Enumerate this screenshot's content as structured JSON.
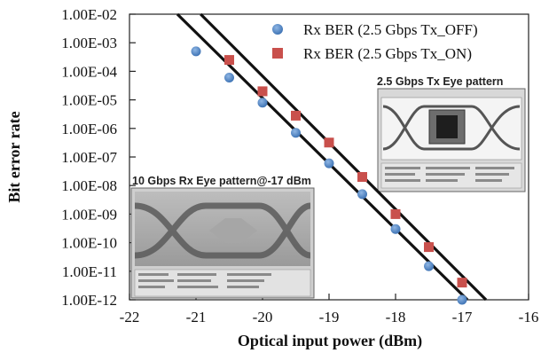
{
  "chart_data": {
    "type": "scatter",
    "xlabel": "Optical input power (dBm)",
    "ylabel": "Bit error rate",
    "xlim": [
      -22,
      -16
    ],
    "ylim": [
      1e-12,
      0.01
    ],
    "y_scale": "log",
    "x_ticks": [
      "-22",
      "-21",
      "-20",
      "-19",
      "-18",
      "-17",
      "-16"
    ],
    "y_ticks": [
      "1.00E-02",
      "1.00E-03",
      "1.00E-04",
      "1.00E-05",
      "1.00E-06",
      "1.00E-07",
      "1.00E-08",
      "1.00E-09",
      "1.00E-10",
      "1.00E-11",
      "1.00E-12"
    ],
    "legend_position": "top-right",
    "series": [
      {
        "name": "Rx BER (2.5 Gbps Tx_OFF)",
        "marker": "circle",
        "color": "#4f86c6",
        "x": [
          -21.0,
          -20.5,
          -20.0,
          -19.5,
          -19.0,
          -18.5,
          -18.0,
          -17.5,
          -17.0
        ],
        "y": [
          0.0005,
          6e-05,
          8e-06,
          7e-07,
          6e-08,
          5e-09,
          3e-10,
          1.5e-11,
          1e-12
        ]
      },
      {
        "name": "Rx BER (2.5 Gbps Tx_ON)",
        "marker": "square",
        "color": "#c9504c",
        "x": [
          -20.5,
          -20.0,
          -19.5,
          -19.0,
          -18.5,
          -18.0,
          -17.5,
          -17.0
        ],
        "y": [
          0.00025,
          2e-05,
          2.8e-06,
          3.2e-07,
          2e-08,
          1e-09,
          7e-11,
          4e-12
        ]
      }
    ],
    "fit_lines": [
      {
        "x": [
          -21.28,
          -16.92
        ],
        "y": [
          0.01,
          1e-12
        ]
      },
      {
        "x": [
          -20.93,
          -16.64
        ],
        "y": [
          0.01,
          1e-12
        ]
      }
    ],
    "insets": [
      {
        "title": "2.5 Gbps Tx Eye pattern"
      },
      {
        "title": "10 Gbps Rx Eye pattern@-17 dBm"
      }
    ]
  }
}
